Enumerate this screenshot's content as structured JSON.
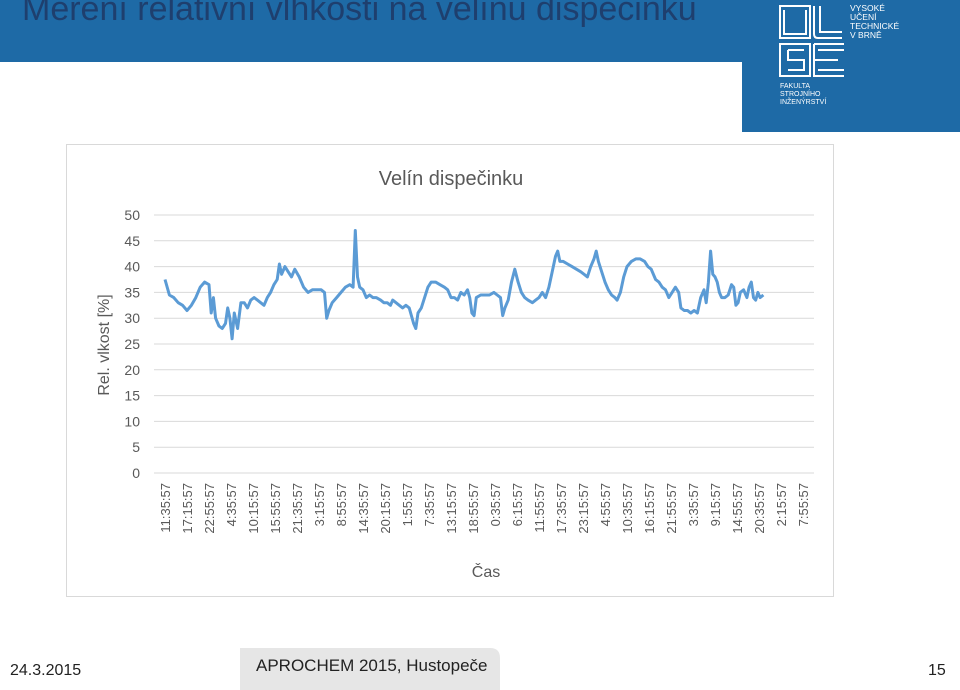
{
  "slide": {
    "title": "Měření relativní vlhkosti na velínu dispečinku",
    "date": "24.3.2015",
    "event": "APROCHEM 2015, Hustopeče",
    "page_number": "15"
  },
  "logo": {
    "lines": [
      "VYSOKÉ",
      "UČENÍ",
      "TECHNICKÉ",
      "V BRNĚ",
      "FAKULTA",
      "STROJNÍHO",
      "INŽENÝRSTVÍ"
    ]
  },
  "colors": {
    "brand_blue": "#1e6aa6",
    "title_color": "#1e3f6e",
    "series_color": "#5b9bd5",
    "grid_color": "#d9d9d9",
    "axis_text": "#595959"
  },
  "chart_data": {
    "type": "line",
    "title": "Velín dispečinku",
    "xlabel": "Čas",
    "ylabel": "Rel. vlkost [%]",
    "ylim": [
      0,
      50
    ],
    "yticks": [
      0,
      5,
      10,
      15,
      20,
      25,
      30,
      35,
      40,
      45,
      50
    ],
    "grid": true,
    "legend": "none",
    "categories": [
      "11:35:57",
      "17:15:57",
      "22:55:57",
      "4:35:57",
      "10:15:57",
      "15:55:57",
      "21:35:57",
      "3:15:57",
      "8:55:57",
      "14:35:57",
      "20:15:57",
      "1:55:57",
      "7:35:57",
      "13:15:57",
      "18:55:57",
      "0:35:57",
      "6:15:57",
      "11:55:57",
      "17:35:57",
      "23:15:57",
      "4:55:57",
      "10:35:57",
      "16:15:57",
      "21:55:57",
      "3:35:57",
      "9:15:57",
      "14:55:57",
      "20:35:57",
      "2:15:57",
      "7:55:57"
    ],
    "series": [
      {
        "color": "#5b9bd5",
        "points": [
          [
            0.0,
            37.5
          ],
          [
            0.2,
            34.5
          ],
          [
            0.4,
            34
          ],
          [
            0.6,
            33
          ],
          [
            0.8,
            32.5
          ],
          [
            1.0,
            31.5
          ],
          [
            1.2,
            32.5
          ],
          [
            1.4,
            34
          ],
          [
            1.6,
            36
          ],
          [
            1.8,
            37
          ],
          [
            2.0,
            36.5
          ],
          [
            2.1,
            31
          ],
          [
            2.2,
            34
          ],
          [
            2.3,
            30
          ],
          [
            2.45,
            28.5
          ],
          [
            2.6,
            28
          ],
          [
            2.75,
            29
          ],
          [
            2.85,
            32
          ],
          [
            2.95,
            30
          ],
          [
            3.05,
            26
          ],
          [
            3.15,
            31
          ],
          [
            3.3,
            28
          ],
          [
            3.45,
            33
          ],
          [
            3.6,
            33
          ],
          [
            3.75,
            32
          ],
          [
            3.9,
            33.5
          ],
          [
            4.05,
            34
          ],
          [
            4.2,
            33.5
          ],
          [
            4.35,
            33
          ],
          [
            4.5,
            32.5
          ],
          [
            4.65,
            34
          ],
          [
            4.8,
            35
          ],
          [
            4.95,
            36.5
          ],
          [
            5.1,
            37.5
          ],
          [
            5.2,
            40.5
          ],
          [
            5.3,
            38.5
          ],
          [
            5.45,
            40
          ],
          [
            5.6,
            39
          ],
          [
            5.75,
            38
          ],
          [
            5.9,
            39.5
          ],
          [
            6.1,
            38
          ],
          [
            6.3,
            36
          ],
          [
            6.5,
            35
          ],
          [
            6.7,
            35.5
          ],
          [
            6.9,
            35.5
          ],
          [
            7.1,
            35.5
          ],
          [
            7.25,
            35
          ],
          [
            7.35,
            30
          ],
          [
            7.45,
            31.5
          ],
          [
            7.6,
            33
          ],
          [
            7.8,
            34
          ],
          [
            8.0,
            35
          ],
          [
            8.2,
            36
          ],
          [
            8.4,
            36.5
          ],
          [
            8.55,
            36
          ],
          [
            8.65,
            47
          ],
          [
            8.75,
            38
          ],
          [
            8.85,
            36
          ],
          [
            9.0,
            35.5
          ],
          [
            9.15,
            34
          ],
          [
            9.3,
            34.5
          ],
          [
            9.45,
            34
          ],
          [
            9.6,
            34
          ],
          [
            9.8,
            33.5
          ],
          [
            9.95,
            33
          ],
          [
            10.1,
            33
          ],
          [
            10.25,
            32.5
          ],
          [
            10.35,
            33.5
          ],
          [
            10.5,
            33
          ],
          [
            10.65,
            32.5
          ],
          [
            10.8,
            32
          ],
          [
            10.95,
            32.5
          ],
          [
            11.1,
            32
          ],
          [
            11.2,
            30.5
          ],
          [
            11.3,
            29
          ],
          [
            11.4,
            28
          ],
          [
            11.5,
            31
          ],
          [
            11.65,
            32
          ],
          [
            11.8,
            34
          ],
          [
            11.95,
            36
          ],
          [
            12.1,
            37
          ],
          [
            12.3,
            37
          ],
          [
            12.5,
            36.5
          ],
          [
            12.7,
            36
          ],
          [
            12.85,
            35.5
          ],
          [
            13.0,
            34
          ],
          [
            13.15,
            34
          ],
          [
            13.3,
            33.5
          ],
          [
            13.45,
            35
          ],
          [
            13.6,
            34.5
          ],
          [
            13.75,
            35.5
          ],
          [
            13.85,
            34
          ],
          [
            13.95,
            31
          ],
          [
            14.05,
            30.5
          ],
          [
            14.15,
            34
          ],
          [
            14.35,
            34.5
          ],
          [
            14.55,
            34.5
          ],
          [
            14.75,
            34.5
          ],
          [
            14.95,
            35
          ],
          [
            15.1,
            34.5
          ],
          [
            15.25,
            34
          ],
          [
            15.35,
            30.5
          ],
          [
            15.45,
            32
          ],
          [
            15.6,
            33.5
          ],
          [
            15.75,
            37
          ],
          [
            15.9,
            39.5
          ],
          [
            16.05,
            37
          ],
          [
            16.2,
            35
          ],
          [
            16.35,
            34
          ],
          [
            16.5,
            33.5
          ],
          [
            16.7,
            33
          ],
          [
            16.85,
            33.5
          ],
          [
            17.0,
            34
          ],
          [
            17.15,
            35
          ],
          [
            17.3,
            34
          ],
          [
            17.45,
            36
          ],
          [
            17.6,
            39
          ],
          [
            17.75,
            42
          ],
          [
            17.85,
            43
          ],
          [
            17.95,
            41
          ],
          [
            18.1,
            41
          ],
          [
            18.3,
            40.5
          ],
          [
            18.5,
            40
          ],
          [
            18.7,
            39.5
          ],
          [
            18.9,
            39
          ],
          [
            19.05,
            38.5
          ],
          [
            19.2,
            38
          ],
          [
            19.35,
            40
          ],
          [
            19.5,
            41.5
          ],
          [
            19.6,
            43
          ],
          [
            19.7,
            41
          ],
          [
            19.85,
            39
          ],
          [
            20.0,
            37
          ],
          [
            20.15,
            35.5
          ],
          [
            20.3,
            34.5
          ],
          [
            20.45,
            34
          ],
          [
            20.55,
            33.5
          ],
          [
            20.7,
            35
          ],
          [
            20.85,
            38
          ],
          [
            21.0,
            40
          ],
          [
            21.2,
            41
          ],
          [
            21.4,
            41.5
          ],
          [
            21.6,
            41.5
          ],
          [
            21.8,
            41
          ],
          [
            21.95,
            40
          ],
          [
            22.1,
            39.5
          ],
          [
            22.3,
            37.5
          ],
          [
            22.45,
            37
          ],
          [
            22.6,
            36
          ],
          [
            22.75,
            35.5
          ],
          [
            22.9,
            34
          ],
          [
            23.05,
            35
          ],
          [
            23.2,
            36
          ],
          [
            23.35,
            35
          ],
          [
            23.45,
            32
          ],
          [
            23.6,
            31.5
          ],
          [
            23.75,
            31.5
          ],
          [
            23.9,
            31
          ],
          [
            24.05,
            31.5
          ],
          [
            24.2,
            31
          ],
          [
            24.35,
            34
          ],
          [
            24.5,
            35.5
          ],
          [
            24.6,
            33
          ],
          [
            24.7,
            37
          ],
          [
            24.8,
            43
          ],
          [
            24.9,
            38.5
          ],
          [
            25.0,
            38
          ],
          [
            25.1,
            37
          ],
          [
            25.2,
            35
          ],
          [
            25.3,
            34
          ],
          [
            25.45,
            34
          ],
          [
            25.6,
            34.5
          ],
          [
            25.75,
            36.5
          ],
          [
            25.85,
            36
          ],
          [
            25.95,
            32.5
          ],
          [
            26.05,
            33
          ],
          [
            26.15,
            35
          ],
          [
            26.3,
            35.5
          ],
          [
            26.45,
            34
          ],
          [
            26.55,
            36
          ],
          [
            26.65,
            37
          ],
          [
            26.75,
            34
          ],
          [
            26.85,
            33.5
          ],
          [
            26.95,
            35
          ],
          [
            27.05,
            34
          ],
          [
            27.2,
            34.5
          ]
        ]
      }
    ]
  }
}
